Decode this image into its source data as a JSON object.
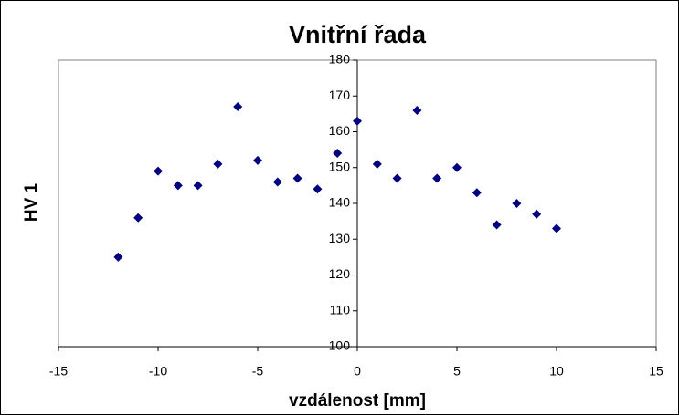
{
  "chart_data": {
    "type": "scatter",
    "title": "Vnitřní řada",
    "x_label": "vzdálenost [mm]",
    "y_label": "HV 1",
    "series": [
      {
        "color": "#000080",
        "x": [
          -12,
          -11,
          -10,
          -9,
          -8,
          -7,
          -6,
          -5,
          -4,
          -3,
          -2,
          -1,
          0,
          1,
          2,
          3,
          4,
          5,
          6,
          7,
          8,
          9,
          10
        ],
        "values": [
          125,
          136,
          149,
          145,
          145,
          151,
          167,
          152,
          146,
          147,
          144,
          154,
          163,
          151,
          147,
          166,
          147,
          150,
          143,
          134,
          140,
          137,
          133
        ]
      }
    ],
    "xlim": [
      -15,
      15
    ],
    "xticks": [
      -15,
      -10,
      -5,
      0,
      5,
      10,
      15
    ],
    "ylim": [
      100,
      180
    ],
    "yticks": [
      100,
      110,
      120,
      130,
      140,
      150,
      160,
      170,
      180
    ],
    "grid": false
  }
}
